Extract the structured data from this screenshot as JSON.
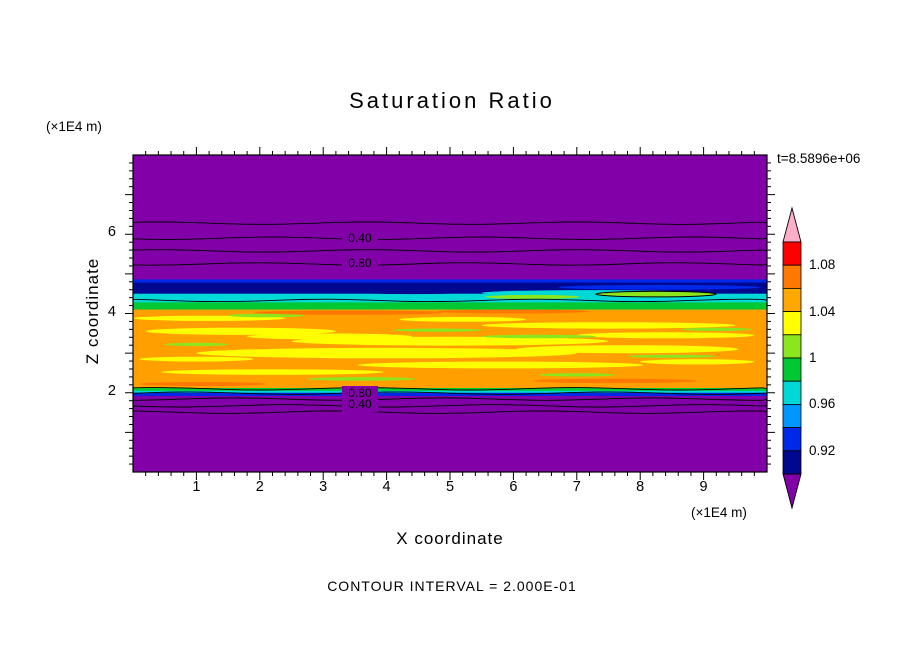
{
  "page": {
    "title": "Saturation Ratio",
    "timestamp": "t=8.5896e+06",
    "footer": "CONTOUR INTERVAL = 2.000E-01",
    "x_axis": {
      "label": "X coordinate",
      "unit": "(×1E4 m)",
      "ticks": [
        "1",
        "2",
        "3",
        "4",
        "5",
        "6",
        "7",
        "8",
        "9"
      ]
    },
    "y_axis": {
      "label": "Z coordinate",
      "unit": "(×1E4 m)",
      "ticks": [
        "2",
        "4",
        "6"
      ]
    }
  },
  "colorbar": {
    "top_arrow": "#ffaec9",
    "bottom_arrow": "#8200a8",
    "cells": [
      "#ff0000",
      "#ff7800",
      "#ffa800",
      "#ffff00",
      "#8ce61e",
      "#00c832",
      "#00d8d8",
      "#0096ff",
      "#0028e8",
      "#000890"
    ],
    "labels": [
      {
        "text": "1.08",
        "b": 1
      },
      {
        "text": "1.04",
        "b": 3
      },
      {
        "text": "1",
        "b": 5
      },
      {
        "text": "0.96",
        "b": 7
      },
      {
        "text": "0.92",
        "b": 9
      }
    ]
  },
  "chart_data": {
    "type": "heatmap",
    "title": "Saturation Ratio",
    "xlabel": "X coordinate (×1E4 m)",
    "ylabel": "Z coordinate (×1E4 m)",
    "xlim": [
      0,
      10
    ],
    "ylim": [
      0,
      8
    ],
    "time_label": "t=8.5896e+06",
    "contour_interval": 0.2,
    "colorbar_tick_levels": [
      0.92,
      0.96,
      1,
      1.04,
      1.08
    ],
    "value_bins": [
      {
        "range": "<0.90",
        "color": "#8200a8"
      },
      {
        "range": "0.90-0.92",
        "color": "#000890"
      },
      {
        "range": "0.92-0.94",
        "color": "#0028e8"
      },
      {
        "range": "0.94-0.96",
        "color": "#0096ff"
      },
      {
        "range": "0.96-0.98",
        "color": "#00d8d8"
      },
      {
        "range": "0.98-1.00",
        "color": "#00c832"
      },
      {
        "range": "1.00-1.02",
        "color": "#8ce61e"
      },
      {
        "range": "1.02-1.04",
        "color": "#ffff00"
      },
      {
        "range": "1.04-1.06",
        "color": "#ffa800"
      },
      {
        "range": "1.06-1.08",
        "color": "#ff7800"
      },
      {
        "range": "1.08-1.10",
        "color": "#ff0000"
      },
      {
        "range": ">1.10",
        "color": "#ffaec9"
      }
    ],
    "bands": [
      {
        "z0": 0.0,
        "z1": 8.0,
        "color": "#8200a8"
      },
      {
        "z0": 2.08,
        "z1": 4.16,
        "color": "#ffa000"
      },
      {
        "z0": 4.1,
        "z1": 4.34,
        "color": "#00c832"
      },
      {
        "z0": 4.28,
        "z1": 4.56,
        "color": "#00d8d8"
      },
      {
        "z0": 4.74,
        "z1": 4.86,
        "color": "#0028e8"
      },
      {
        "z0": 4.5,
        "z1": 4.78,
        "color": "#000890"
      },
      {
        "z0": 2.02,
        "z1": 2.12,
        "color": "#00c832"
      },
      {
        "z0": 1.97,
        "z1": 2.05,
        "color": "#00d8d8"
      },
      {
        "z0": 1.92,
        "z1": 2.0,
        "color": "#0028e8"
      }
    ],
    "streaks": [
      [
        1.7,
        3.55,
        3.0,
        0.18,
        "#ffff00"
      ],
      [
        5.0,
        3.3,
        5.0,
        0.22,
        "#ffff00"
      ],
      [
        7.5,
        3.7,
        4.0,
        0.16,
        "#ffff00"
      ],
      [
        4.0,
        3.0,
        6.0,
        0.26,
        "#ffff00"
      ],
      [
        7.8,
        3.1,
        3.5,
        0.2,
        "#ffff00"
      ],
      [
        1.2,
        3.88,
        2.4,
        0.13,
        "#ffff00"
      ],
      [
        5.8,
        2.7,
        4.5,
        0.17,
        "#ffff00"
      ],
      [
        2.2,
        2.52,
        3.5,
        0.14,
        "#ffff00"
      ],
      [
        8.4,
        3.45,
        2.8,
        0.15,
        "#ffff00"
      ],
      [
        5.2,
        3.85,
        2.0,
        0.12,
        "#ffff00"
      ],
      [
        8.9,
        2.78,
        1.8,
        0.13,
        "#ffff00"
      ],
      [
        1.0,
        2.85,
        1.8,
        0.12,
        "#ffff00"
      ],
      [
        3.1,
        3.42,
        2.6,
        0.15,
        "#ffff00"
      ],
      [
        2.1,
        3.95,
        1.2,
        0.09,
        "#8ce61e"
      ],
      [
        6.4,
        3.42,
        1.8,
        0.09,
        "#8ce61e"
      ],
      [
        8.5,
        2.92,
        1.4,
        0.08,
        "#8ce61e"
      ],
      [
        3.6,
        2.35,
        1.7,
        0.09,
        "#8ce61e"
      ],
      [
        1.0,
        3.22,
        1.0,
        0.08,
        "#8ce61e"
      ],
      [
        7.0,
        2.45,
        1.2,
        0.08,
        "#8ce61e"
      ],
      [
        9.2,
        3.6,
        1.1,
        0.08,
        "#8ce61e"
      ],
      [
        4.8,
        3.58,
        1.4,
        0.08,
        "#8ce61e"
      ],
      [
        3.4,
        4.02,
        3.0,
        0.11,
        "#ff7800"
      ],
      [
        7.6,
        2.3,
        2.6,
        0.11,
        "#ff7800"
      ],
      [
        1.1,
        2.22,
        2.0,
        0.1,
        "#ff7800"
      ],
      [
        6.0,
        4.05,
        2.4,
        0.1,
        "#ff7800"
      ],
      [
        7.2,
        4.52,
        3.4,
        0.14,
        "#00d8d8"
      ],
      [
        8.3,
        4.66,
        3.2,
        0.12,
        "#0028e8"
      ],
      [
        1.6,
        4.64,
        3.2,
        0.16,
        "#000890"
      ],
      [
        4.4,
        4.58,
        2.4,
        0.18,
        "#000890"
      ],
      [
        6.3,
        4.42,
        1.5,
        0.1,
        "#8ce61e"
      ],
      [
        8.25,
        4.49,
        1.9,
        0.14,
        "#8ce61e",
        1
      ]
    ],
    "contour_lines": [
      {
        "level": "0.20",
        "z": 6.28
      },
      {
        "level": "0.40",
        "z": 5.9
      },
      {
        "level": "0.60",
        "z": 5.58
      },
      {
        "level": "0.80",
        "z": 5.25
      },
      {
        "level": "1.00",
        "z": 4.33
      },
      {
        "level": "1.00",
        "z": 2.1
      },
      {
        "level": "0.80",
        "z": 1.99
      },
      {
        "level": "0.60",
        "z": 1.84
      },
      {
        "level": "0.40",
        "z": 1.67
      },
      {
        "level": "0.20",
        "z": 1.51
      }
    ],
    "contour_labels": [
      {
        "text": "0.40",
        "x": 3.58,
        "z": 5.88
      },
      {
        "text": "0.80",
        "x": 3.58,
        "z": 5.25
      },
      {
        "text": "0.80",
        "x": 3.58,
        "z": 1.97
      },
      {
        "text": "0.40",
        "x": 3.58,
        "z": 1.68
      }
    ]
  }
}
